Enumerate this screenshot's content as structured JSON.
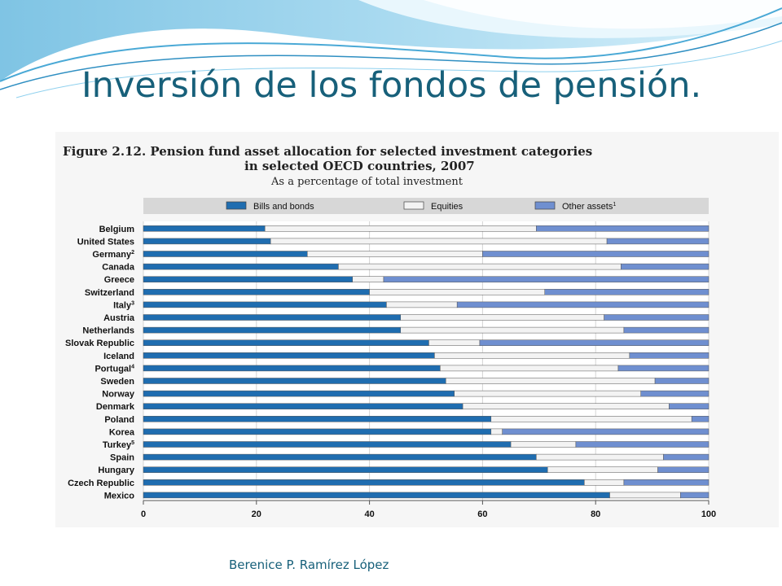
{
  "slide": {
    "title": "Inversión de los fondos de pensión.",
    "author": "Berenice P. Ramírez López"
  },
  "chart_data": {
    "type": "bar",
    "orientation": "horizontal",
    "stacked": true,
    "title": "Figure 2.12.  Pension fund asset allocation for selected investment categories",
    "title_line2": "in selected OECD countries, 2007",
    "subtitle": "As a percentage of total investment",
    "xlabel": "",
    "ylabel": "",
    "xlim": [
      0,
      100
    ],
    "xticks": [
      "0",
      "20",
      "40",
      "60",
      "80",
      "100"
    ],
    "grid": true,
    "legend_position": "top",
    "categories": [
      "Belgium",
      "United States",
      "Germany",
      "Canada",
      "Greece",
      "Switzerland",
      "Italy",
      "Austria",
      "Netherlands",
      "Slovak Republic",
      "Iceland",
      "Portugal",
      "Sweden",
      "Norway",
      "Denmark",
      "Poland",
      "Korea",
      "Turkey",
      "Spain",
      "Hungary",
      "Czech Republic",
      "Mexico"
    ],
    "category_notes": [
      "",
      "",
      "2",
      "",
      "",
      "",
      "3",
      "",
      "",
      "",
      "",
      "4",
      "",
      "",
      "",
      "",
      "",
      "5",
      "",
      "",
      "",
      ""
    ],
    "series": [
      {
        "name": "Bills and bonds",
        "note": "",
        "color": "#1f6db0",
        "values": [
          21.5,
          22.5,
          29,
          34.5,
          37,
          40,
          43,
          45.5,
          45.5,
          50.5,
          51.5,
          52.5,
          53.5,
          55,
          56.5,
          61.5,
          61.5,
          65,
          69.5,
          71.5,
          78,
          82.5
        ]
      },
      {
        "name": "Equities",
        "note": "",
        "color": "#f3f3f3",
        "values": [
          48,
          59.5,
          31,
          50,
          5.5,
          31,
          12.5,
          36,
          39.5,
          9,
          34.5,
          31.5,
          37,
          33,
          36.5,
          35.5,
          2,
          11.5,
          22.5,
          19.5,
          7,
          12.5
        ]
      },
      {
        "name": "Other assets",
        "note": "1",
        "color": "#6f8fd0",
        "values": [
          30.5,
          18,
          40,
          15.5,
          57.5,
          29,
          44.5,
          18.5,
          15,
          40.5,
          14,
          16,
          9.5,
          12,
          7,
          3,
          36.5,
          23.5,
          8,
          9,
          15,
          5
        ]
      }
    ]
  }
}
